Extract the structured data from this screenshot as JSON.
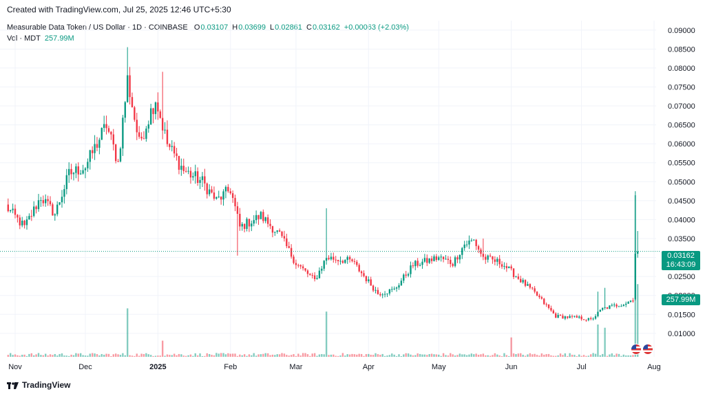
{
  "header": {
    "created_text": "Created with TradingView.com, Jul 25, 2025 12:46 UTC+5:30"
  },
  "legend": {
    "symbol": "Measurable Data Token / US Dollar · 1D · COINBASE",
    "open_label": "O",
    "open": "0.03107",
    "high_label": "H",
    "high": "0.03699",
    "low_label": "L",
    "low": "0.02861",
    "close_label": "C",
    "close": "0.03162",
    "change": "+0.00063 (+2.03%)",
    "volume_label": "Vol · MDT",
    "volume": "257.99M"
  },
  "price_badge": {
    "price": "0.03162",
    "countdown": "16:43:09"
  },
  "volume_badge": "257.99M",
  "footer": {
    "brand": "TradingView"
  },
  "colors": {
    "up": "#089981",
    "down": "#f23645",
    "grid": "#f0f3fa",
    "text": "#131722"
  },
  "chart_data": {
    "type": "candlestick",
    "y_ticks": [
      "0.09000",
      "0.08500",
      "0.08000",
      "0.07500",
      "0.07000",
      "0.06500",
      "0.06000",
      "0.05500",
      "0.05000",
      "0.04500",
      "0.04000",
      "0.03500",
      "0.03000",
      "0.02500",
      "0.02000",
      "0.01500",
      "0.01000"
    ],
    "ylim": [
      0.0038,
      0.0925
    ],
    "x_ticks": [
      {
        "label": "Nov",
        "date": "2024-11-01"
      },
      {
        "label": "Dec",
        "date": "2024-12-01"
      },
      {
        "label": "2025",
        "date": "2025-01-01",
        "bold": true
      },
      {
        "label": "Feb",
        "date": "2025-02-01"
      },
      {
        "label": "Mar",
        "date": "2025-03-01"
      },
      {
        "label": "Apr",
        "date": "2025-04-01"
      },
      {
        "label": "May",
        "date": "2025-05-01"
      },
      {
        "label": "Jun",
        "date": "2025-06-01"
      },
      {
        "label": "Jul",
        "date": "2025-07-01"
      },
      {
        "label": "Aug",
        "date": "2025-08-01"
      }
    ],
    "start_date": "2024-10-28",
    "anchors": [
      {
        "date": "2024-10-28",
        "price": 0.0435
      },
      {
        "date": "2024-11-05",
        "price": 0.038
      },
      {
        "date": "2024-11-12",
        "price": 0.046
      },
      {
        "date": "2024-11-18",
        "price": 0.0415
      },
      {
        "date": "2024-11-24",
        "price": 0.052
      },
      {
        "date": "2024-12-01",
        "price": 0.054
      },
      {
        "date": "2024-12-10",
        "price": 0.065
      },
      {
        "date": "2024-12-15",
        "price": 0.055
      },
      {
        "date": "2024-12-19",
        "price": 0.077
      },
      {
        "date": "2024-12-24",
        "price": 0.06
      },
      {
        "date": "2024-12-31",
        "price": 0.072
      },
      {
        "date": "2025-01-05",
        "price": 0.06
      },
      {
        "date": "2025-01-12",
        "price": 0.053
      },
      {
        "date": "2025-01-20",
        "price": 0.05
      },
      {
        "date": "2025-01-26",
        "price": 0.045
      },
      {
        "date": "2025-02-01",
        "price": 0.048
      },
      {
        "date": "2025-02-05",
        "price": 0.038
      },
      {
        "date": "2025-02-14",
        "price": 0.041
      },
      {
        "date": "2025-02-22",
        "price": 0.036
      },
      {
        "date": "2025-03-01",
        "price": 0.0285
      },
      {
        "date": "2025-03-09",
        "price": 0.024
      },
      {
        "date": "2025-03-14",
        "price": 0.03
      },
      {
        "date": "2025-03-25",
        "price": 0.029
      },
      {
        "date": "2025-04-05",
        "price": 0.0205
      },
      {
        "date": "2025-04-12",
        "price": 0.0215
      },
      {
        "date": "2025-04-20",
        "price": 0.028
      },
      {
        "date": "2025-05-01",
        "price": 0.03
      },
      {
        "date": "2025-05-07",
        "price": 0.0285
      },
      {
        "date": "2025-05-12",
        "price": 0.0335
      },
      {
        "date": "2025-05-16",
        "price": 0.0345
      },
      {
        "date": "2025-05-20",
        "price": 0.03
      },
      {
        "date": "2025-05-28",
        "price": 0.0285
      },
      {
        "date": "2025-06-05",
        "price": 0.024
      },
      {
        "date": "2025-06-12",
        "price": 0.02
      },
      {
        "date": "2025-06-20",
        "price": 0.0145
      },
      {
        "date": "2025-07-01",
        "price": 0.014
      },
      {
        "date": "2025-07-05",
        "price": 0.0135
      },
      {
        "date": "2025-07-10",
        "price": 0.0165
      },
      {
        "date": "2025-07-20",
        "price": 0.018
      },
      {
        "date": "2025-07-23",
        "price": 0.019
      },
      {
        "date": "2025-07-24",
        "price": 0.031
      },
      {
        "date": "2025-07-25",
        "price": 0.0316
      }
    ],
    "spikes": [
      {
        "date": "2024-12-19",
        "high": 0.0855
      },
      {
        "date": "2025-01-03",
        "high": 0.079
      },
      {
        "date": "2025-02-04",
        "low": 0.0305
      },
      {
        "date": "2025-03-14",
        "high": 0.043
      },
      {
        "date": "2025-05-20",
        "high": 0.035
      },
      {
        "date": "2025-07-08",
        "high": 0.021
      },
      {
        "date": "2025-07-11",
        "high": 0.022
      },
      {
        "date": "2025-07-24",
        "high": 0.0475,
        "open": 0.019,
        "close": 0.031
      },
      {
        "date": "2025-07-25",
        "high": 0.037,
        "open": 0.031,
        "close": 0.0316
      }
    ],
    "volume_spikes": [
      {
        "date": "2024-12-19",
        "value": 0.3
      },
      {
        "date": "2025-01-03",
        "value": 0.1
      },
      {
        "date": "2025-03-14",
        "value": 0.28
      },
      {
        "date": "2025-06-01",
        "value": 0.12
      },
      {
        "date": "2025-07-08",
        "value": 0.2
      },
      {
        "date": "2025-07-11",
        "value": 0.18
      },
      {
        "date": "2025-07-24",
        "value": 1.0
      },
      {
        "date": "2025-07-25",
        "value": 0.45
      }
    ]
  }
}
